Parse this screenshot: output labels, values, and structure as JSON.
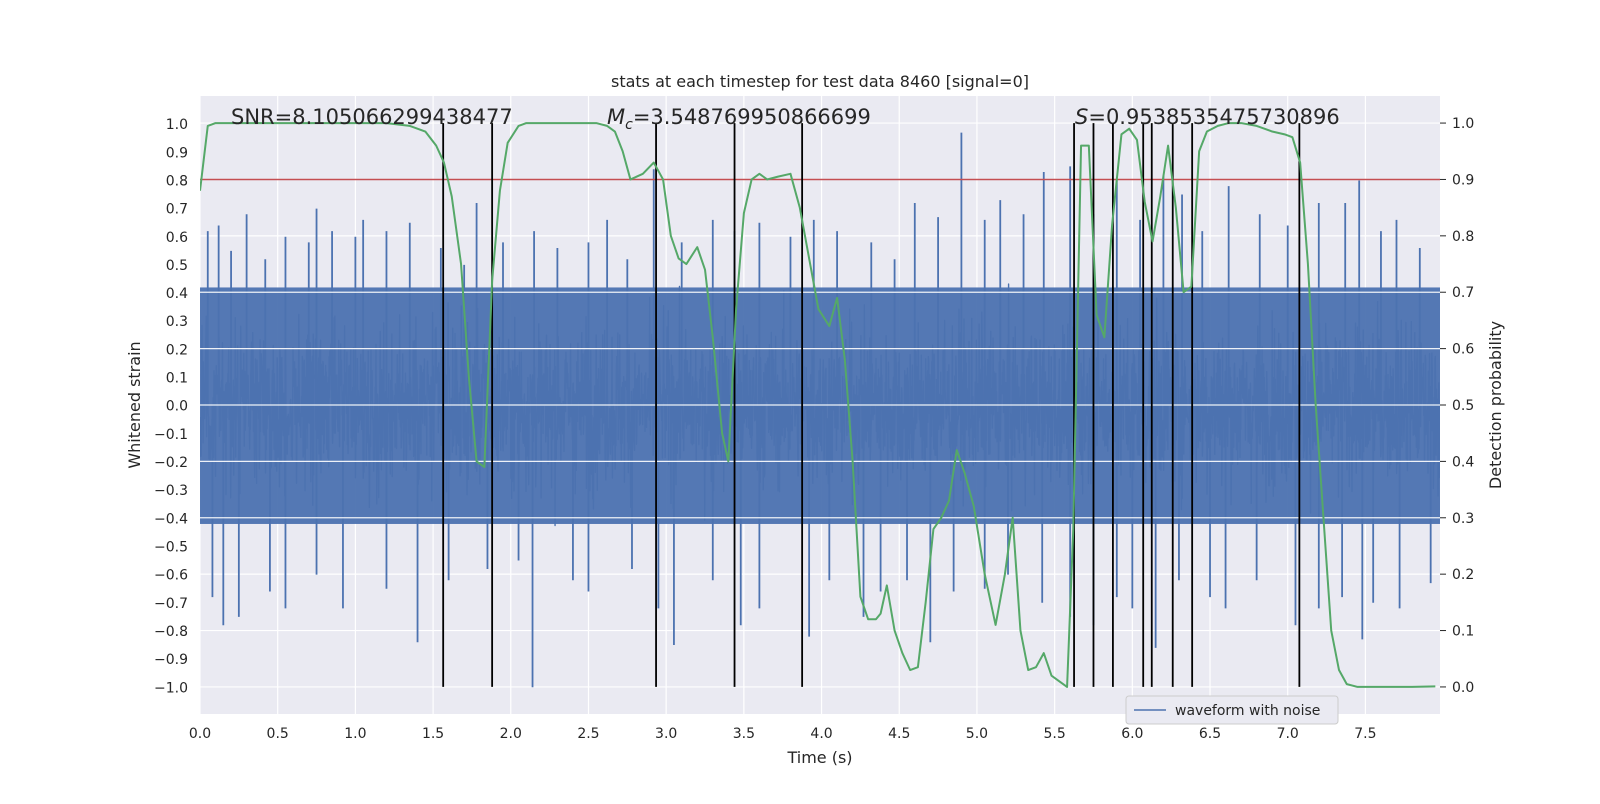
{
  "chart_data": {
    "type": "line",
    "title": "stats at each timestep for test data 8460 [signal=0]",
    "xlabel": "Time (s)",
    "ylabel": "Whitened strain",
    "y2label": "Detection probability",
    "xlim": [
      0.0,
      7.98
    ],
    "ylim": [
      -1.095,
      1.1
    ],
    "y2lim": [
      -0.048,
      1.048
    ],
    "grid": true,
    "legend_position": "lower-right",
    "x_ticks": [
      "0.0",
      "0.5",
      "1.0",
      "1.5",
      "2.0",
      "2.5",
      "3.0",
      "3.5",
      "4.0",
      "4.5",
      "5.0",
      "5.5",
      "6.0",
      "6.5",
      "7.0",
      "7.5"
    ],
    "y_ticks": [
      "1.0",
      "0.9",
      "0.8",
      "0.7",
      "0.6",
      "0.5",
      "0.4",
      "0.3",
      "0.2",
      "0.1",
      "0.0",
      "−0.1",
      "−0.2",
      "−0.3",
      "−0.4",
      "−0.5",
      "−0.6",
      "−0.7",
      "−0.8",
      "−0.9",
      "−1.0"
    ],
    "y2_ticks": [
      "1.0",
      "0.9",
      "0.8",
      "0.7",
      "0.6",
      "0.5",
      "0.4",
      "0.3",
      "0.2",
      "0.1",
      "0.0"
    ],
    "annotations": {
      "snr": "SNR=8.105066299438477",
      "mc_symbol": "M",
      "mc_sub": "c",
      "mc_value": "=3.548769950866699",
      "s_symbol": "S",
      "s_value": "=0.9538535475730896"
    },
    "threshold_probability": 0.9,
    "series": [
      {
        "name": "waveform with noise",
        "color": "#4c72b0",
        "envelope": "dense noise, |strain| mostly within 0.45, peaks to about ±1.0",
        "upper_peaks": [
          [
            0.05,
            0.62
          ],
          [
            0.12,
            0.64
          ],
          [
            0.2,
            0.55
          ],
          [
            0.3,
            0.68
          ],
          [
            0.42,
            0.52
          ],
          [
            0.55,
            0.6
          ],
          [
            0.7,
            0.58
          ],
          [
            0.75,
            0.7
          ],
          [
            0.85,
            0.62
          ],
          [
            1.0,
            0.6
          ],
          [
            1.05,
            0.66
          ],
          [
            1.2,
            0.62
          ],
          [
            1.35,
            0.65
          ],
          [
            1.55,
            0.56
          ],
          [
            1.7,
            0.5
          ],
          [
            1.78,
            0.72
          ],
          [
            1.95,
            0.58
          ],
          [
            2.15,
            0.62
          ],
          [
            2.3,
            0.56
          ],
          [
            2.5,
            0.58
          ],
          [
            2.62,
            0.66
          ],
          [
            2.75,
            0.52
          ],
          [
            2.92,
            0.84
          ],
          [
            3.1,
            0.58
          ],
          [
            3.3,
            0.66
          ],
          [
            3.44,
            0.62
          ],
          [
            3.6,
            0.65
          ],
          [
            3.8,
            0.6
          ],
          [
            3.95,
            0.66
          ],
          [
            4.1,
            0.62
          ],
          [
            4.32,
            0.58
          ],
          [
            4.47,
            0.52
          ],
          [
            4.6,
            0.72
          ],
          [
            4.75,
            0.67
          ],
          [
            4.9,
            0.97
          ],
          [
            5.05,
            0.66
          ],
          [
            5.15,
            0.73
          ],
          [
            5.3,
            0.68
          ],
          [
            5.43,
            0.83
          ],
          [
            5.6,
            0.85
          ],
          [
            5.75,
            0.68
          ],
          [
            5.9,
            0.8
          ],
          [
            6.05,
            0.66
          ],
          [
            6.2,
            0.82
          ],
          [
            6.32,
            0.75
          ],
          [
            6.45,
            0.62
          ],
          [
            6.62,
            0.78
          ],
          [
            6.82,
            0.68
          ],
          [
            7.0,
            0.64
          ],
          [
            7.2,
            0.72
          ],
          [
            7.37,
            0.72
          ],
          [
            7.46,
            0.8
          ],
          [
            7.6,
            0.62
          ],
          [
            7.7,
            0.66
          ],
          [
            7.85,
            0.56
          ]
        ],
        "lower_peaks": [
          [
            0.08,
            -0.68
          ],
          [
            0.15,
            -0.78
          ],
          [
            0.25,
            -0.75
          ],
          [
            0.45,
            -0.66
          ],
          [
            0.55,
            -0.72
          ],
          [
            0.75,
            -0.6
          ],
          [
            0.92,
            -0.72
          ],
          [
            1.2,
            -0.65
          ],
          [
            1.4,
            -0.84
          ],
          [
            1.6,
            -0.62
          ],
          [
            1.85,
            -0.58
          ],
          [
            2.05,
            -0.55
          ],
          [
            2.14,
            -1.0
          ],
          [
            2.4,
            -0.62
          ],
          [
            2.5,
            -0.66
          ],
          [
            2.78,
            -0.58
          ],
          [
            2.95,
            -0.72
          ],
          [
            3.05,
            -0.85
          ],
          [
            3.3,
            -0.62
          ],
          [
            3.48,
            -0.78
          ],
          [
            3.6,
            -0.72
          ],
          [
            3.92,
            -0.82
          ],
          [
            4.05,
            -0.62
          ],
          [
            4.27,
            -0.75
          ],
          [
            4.38,
            -0.66
          ],
          [
            4.55,
            -0.62
          ],
          [
            4.7,
            -0.84
          ],
          [
            4.85,
            -0.66
          ],
          [
            5.05,
            -0.65
          ],
          [
            5.2,
            -0.6
          ],
          [
            5.42,
            -0.7
          ],
          [
            5.6,
            -0.75
          ],
          [
            5.75,
            -0.78
          ],
          [
            5.9,
            -0.68
          ],
          [
            6.0,
            -0.72
          ],
          [
            6.15,
            -0.86
          ],
          [
            6.3,
            -0.62
          ],
          [
            6.5,
            -0.68
          ],
          [
            6.6,
            -0.72
          ],
          [
            6.8,
            -0.62
          ],
          [
            7.05,
            -0.78
          ],
          [
            7.2,
            -0.72
          ],
          [
            7.35,
            -0.68
          ],
          [
            7.48,
            -0.83
          ],
          [
            7.55,
            -0.7
          ],
          [
            7.72,
            -0.72
          ],
          [
            7.92,
            -0.63
          ]
        ]
      },
      {
        "name": "detection probability",
        "color": "#55a868",
        "axis": "right",
        "points": [
          [
            0.0,
            0.88
          ],
          [
            0.05,
            0.995
          ],
          [
            0.1,
            1.0
          ],
          [
            0.3,
            1.0
          ],
          [
            0.6,
            1.0
          ],
          [
            1.0,
            1.0
          ],
          [
            1.2,
            1.0
          ],
          [
            1.35,
            0.995
          ],
          [
            1.45,
            0.985
          ],
          [
            1.52,
            0.96
          ],
          [
            1.57,
            0.93
          ],
          [
            1.62,
            0.87
          ],
          [
            1.68,
            0.75
          ],
          [
            1.73,
            0.55
          ],
          [
            1.78,
            0.4
          ],
          [
            1.83,
            0.39
          ],
          [
            1.88,
            0.72
          ],
          [
            1.93,
            0.88
          ],
          [
            1.98,
            0.965
          ],
          [
            2.05,
            0.995
          ],
          [
            2.1,
            1.0
          ],
          [
            2.3,
            1.0
          ],
          [
            2.55,
            1.0
          ],
          [
            2.62,
            0.995
          ],
          [
            2.67,
            0.985
          ],
          [
            2.72,
            0.95
          ],
          [
            2.77,
            0.9
          ],
          [
            2.85,
            0.91
          ],
          [
            2.92,
            0.93
          ],
          [
            2.98,
            0.9
          ],
          [
            3.03,
            0.8
          ],
          [
            3.08,
            0.76
          ],
          [
            3.13,
            0.75
          ],
          [
            3.2,
            0.78
          ],
          [
            3.25,
            0.74
          ],
          [
            3.3,
            0.62
          ],
          [
            3.36,
            0.45
          ],
          [
            3.4,
            0.4
          ],
          [
            3.45,
            0.67
          ],
          [
            3.5,
            0.84
          ],
          [
            3.55,
            0.9
          ],
          [
            3.6,
            0.91
          ],
          [
            3.65,
            0.9
          ],
          [
            3.72,
            0.905
          ],
          [
            3.8,
            0.91
          ],
          [
            3.86,
            0.85
          ],
          [
            3.92,
            0.76
          ],
          [
            3.98,
            0.67
          ],
          [
            4.05,
            0.64
          ],
          [
            4.1,
            0.69
          ],
          [
            4.15,
            0.58
          ],
          [
            4.2,
            0.4
          ],
          [
            4.25,
            0.16
          ],
          [
            4.3,
            0.12
          ],
          [
            4.35,
            0.12
          ],
          [
            4.38,
            0.13
          ],
          [
            4.42,
            0.18
          ],
          [
            4.47,
            0.1
          ],
          [
            4.52,
            0.06
          ],
          [
            4.57,
            0.03
          ],
          [
            4.62,
            0.035
          ],
          [
            4.67,
            0.15
          ],
          [
            4.72,
            0.28
          ],
          [
            4.77,
            0.3
          ],
          [
            4.82,
            0.33
          ],
          [
            4.87,
            0.42
          ],
          [
            4.92,
            0.38
          ],
          [
            4.98,
            0.32
          ],
          [
            5.05,
            0.2
          ],
          [
            5.12,
            0.11
          ],
          [
            5.18,
            0.2
          ],
          [
            5.23,
            0.3
          ],
          [
            5.28,
            0.1
          ],
          [
            5.33,
            0.03
          ],
          [
            5.38,
            0.035
          ],
          [
            5.43,
            0.06
          ],
          [
            5.48,
            0.02
          ],
          [
            5.53,
            0.01
          ],
          [
            5.58,
            0.0
          ],
          [
            5.62,
            0.28
          ],
          [
            5.67,
            0.96
          ],
          [
            5.72,
            0.96
          ],
          [
            5.77,
            0.66
          ],
          [
            5.82,
            0.62
          ],
          [
            5.87,
            0.82
          ],
          [
            5.93,
            0.98
          ],
          [
            5.98,
            0.99
          ],
          [
            6.03,
            0.97
          ],
          [
            6.08,
            0.86
          ],
          [
            6.13,
            0.79
          ],
          [
            6.18,
            0.87
          ],
          [
            6.23,
            0.96
          ],
          [
            6.28,
            0.85
          ],
          [
            6.33,
            0.7
          ],
          [
            6.38,
            0.71
          ],
          [
            6.43,
            0.95
          ],
          [
            6.48,
            0.985
          ],
          [
            6.55,
            0.995
          ],
          [
            6.62,
            1.0
          ],
          [
            6.7,
            1.0
          ],
          [
            6.8,
            0.995
          ],
          [
            6.9,
            0.985
          ],
          [
            6.98,
            0.98
          ],
          [
            7.03,
            0.975
          ],
          [
            7.08,
            0.93
          ],
          [
            7.13,
            0.75
          ],
          [
            7.18,
            0.5
          ],
          [
            7.23,
            0.3
          ],
          [
            7.28,
            0.1
          ],
          [
            7.33,
            0.03
          ],
          [
            7.38,
            0.005
          ],
          [
            7.45,
            0.0
          ],
          [
            7.6,
            0.0
          ],
          [
            7.8,
            0.0
          ],
          [
            7.95,
            0.001
          ]
        ]
      }
    ],
    "threshold_line": {
      "color": "#c44e52",
      "value": 0.9,
      "axis": "right"
    },
    "event_lines": {
      "color": "#000000",
      "x": [
        1.565,
        1.88,
        2.935,
        3.44,
        3.875,
        5.625,
        5.75,
        5.875,
        6.07,
        6.125,
        6.26,
        6.385,
        7.075
      ]
    }
  }
}
